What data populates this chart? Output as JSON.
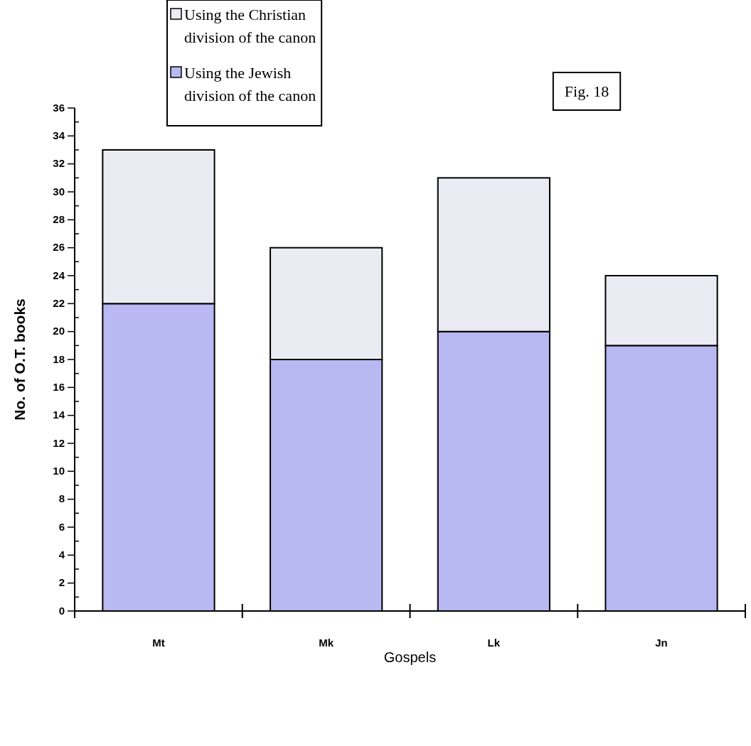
{
  "chart_data": {
    "type": "bar",
    "stacked": true,
    "xlabel": "Gospels",
    "ylabel": "No. of O.T. books",
    "categories": [
      "Mt",
      "Mk",
      "Lk",
      "Jn"
    ],
    "series": [
      {
        "name": "Using the Jewish division of the canon",
        "color": "#b8b8f2",
        "values": [
          22,
          18,
          20,
          19
        ]
      },
      {
        "name": "Using the Christian division of the canon",
        "color": "#ebebf3",
        "values": [
          11,
          8,
          11,
          5
        ]
      }
    ],
    "ylim": [
      0,
      36
    ],
    "yticks": [
      0,
      {
        "value": 1,
        "label": null
      },
      2,
      {
        "value": 3,
        "label": null
      },
      4,
      {
        "value": 5,
        "label": null
      },
      6,
      {
        "value": 7,
        "label": null
      },
      8,
      {
        "value": 9,
        "label": null
      },
      10,
      {
        "value": 11,
        "label": null
      },
      12,
      {
        "value": 13,
        "label": null
      },
      14,
      {
        "value": 15,
        "label": null
      },
      16,
      {
        "value": 17,
        "label": null
      },
      18,
      {
        "value": 19,
        "label": null
      },
      20,
      {
        "value": 21,
        "label": null
      },
      22,
      {
        "value": 23,
        "label": null
      },
      24,
      {
        "value": 25,
        "label": null
      },
      26,
      {
        "value": 27,
        "label": null
      },
      28,
      {
        "value": 29,
        "label": null
      },
      30,
      {
        "value": 31,
        "label": null
      },
      32,
      {
        "value": 33,
        "label": null
      },
      34,
      {
        "value": 35,
        "label": null
      },
      36
    ],
    "legend": "top",
    "grid": false,
    "annotations": [
      "Fig. 18"
    ]
  }
}
